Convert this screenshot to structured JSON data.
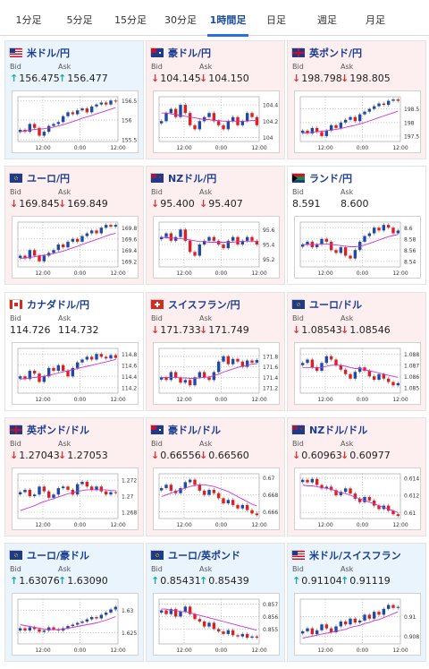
{
  "tabs": [
    "1分足",
    "5分足",
    "15分足",
    "30分足",
    "1時間足",
    "日足",
    "週足",
    "月足"
  ],
  "active_tab": 4,
  "labels": {
    "bid": "Bid",
    "ask": "Ask"
  },
  "colors": {
    "up_candle": "#1f4aa8",
    "down_candle": "#e02020",
    "ma_line": "#cc33cc",
    "up_arrow": "#1aa7a7",
    "down_arrow": "#e03030"
  },
  "panels": [
    {
      "title": "米ドル/円",
      "flag": "us",
      "trend": "up",
      "bid": "156.475",
      "ask": "156.477",
      "chart_data": {
        "type": "candlestick",
        "yticks": [
          "156.5",
          "156",
          "155.5"
        ],
        "xticks": [
          "12:00",
          "0:00",
          "12:00"
        ],
        "ylim": [
          155.45,
          156.6
        ],
        "close": [
          155.75,
          155.7,
          155.9,
          155.8,
          155.6,
          155.7,
          155.85,
          155.9,
          155.95,
          156.1,
          156.2,
          156.15,
          156.25,
          156.3,
          156.2,
          156.35,
          156.4,
          156.45,
          156.4,
          156.5,
          156.48
        ],
        "ma": [
          155.7,
          155.72,
          155.74,
          155.76,
          155.77,
          155.78,
          155.8,
          155.82,
          155.85,
          155.88,
          155.92,
          155.96,
          156.0,
          156.05,
          156.08,
          156.12,
          156.16,
          156.2,
          156.24,
          156.28,
          156.32
        ]
      }
    },
    {
      "title": "豪ドル/円",
      "flag": "au",
      "trend": "down",
      "bid": "104.145",
      "ask": "104.150",
      "chart_data": {
        "type": "candlestick",
        "yticks": [
          "104.4",
          "104.2",
          "104"
        ],
        "xticks": [
          "12:00",
          "0:00",
          "12:00"
        ],
        "ylim": [
          103.95,
          104.5
        ],
        "close": [
          104.2,
          104.3,
          104.35,
          104.25,
          104.4,
          104.3,
          104.15,
          104.1,
          104.2,
          104.25,
          104.3,
          104.2,
          104.15,
          104.1,
          104.2,
          104.25,
          104.15,
          104.2,
          104.3,
          104.25,
          104.15
        ],
        "ma": [
          104.3,
          104.3,
          104.29,
          104.28,
          104.27,
          104.26,
          104.25,
          104.24,
          104.23,
          104.22,
          104.22,
          104.21,
          104.21,
          104.2,
          104.2,
          104.2,
          104.2,
          104.2,
          104.2,
          104.21,
          104.21
        ]
      }
    },
    {
      "title": "英ポンド/円",
      "flag": "gb",
      "trend": "down",
      "bid": "198.798",
      "ask": "198.805",
      "chart_data": {
        "type": "candlestick",
        "yticks": [
          "198.5",
          "198",
          "197.5"
        ],
        "xticks": [
          "12:00",
          "0:00",
          "12:00"
        ],
        "ylim": [
          197.3,
          198.95
        ],
        "close": [
          197.7,
          197.6,
          197.8,
          197.65,
          197.5,
          197.7,
          197.9,
          197.8,
          198.0,
          198.1,
          198.2,
          198.05,
          198.3,
          198.4,
          198.5,
          198.6,
          198.7,
          198.65,
          198.8,
          198.85,
          198.8
        ],
        "ma": [
          197.6,
          197.62,
          197.64,
          197.66,
          197.68,
          197.7,
          197.72,
          197.75,
          197.78,
          197.82,
          197.86,
          197.9,
          197.95,
          198.0,
          198.06,
          198.12,
          198.18,
          198.24,
          198.3,
          198.36,
          198.42
        ]
      }
    },
    {
      "title": "ユーロ/円",
      "flag": "eu",
      "trend": "down",
      "bid": "169.845",
      "ask": "169.849",
      "chart_data": {
        "type": "candlestick",
        "yticks": [
          "169.8",
          "169.6",
          "169.4",
          "169.2"
        ],
        "xticks": [
          "12:00",
          "0:00",
          "12:00"
        ],
        "ylim": [
          169.1,
          169.9
        ],
        "close": [
          169.3,
          169.25,
          169.4,
          169.3,
          169.2,
          169.3,
          169.35,
          169.4,
          169.5,
          169.45,
          169.55,
          169.6,
          169.55,
          169.65,
          169.7,
          169.75,
          169.7,
          169.8,
          169.85,
          169.82,
          169.85
        ],
        "ma": [
          169.25,
          169.26,
          169.27,
          169.28,
          169.3,
          169.31,
          169.32,
          169.34,
          169.36,
          169.38,
          169.41,
          169.44,
          169.47,
          169.5,
          169.53,
          169.56,
          169.59,
          169.62,
          169.65,
          169.68,
          169.7
        ]
      }
    },
    {
      "title": "NZドル/円",
      "flag": "nz",
      "trend": "down",
      "bid": "95.400",
      "ask": "95.407",
      "chart_data": {
        "type": "candlestick",
        "yticks": [
          "95.6",
          "95.4",
          "95.2"
        ],
        "xticks": [
          "12:00",
          "0:00",
          "12:00"
        ],
        "ylim": [
          95.1,
          95.7
        ],
        "close": [
          95.5,
          95.55,
          95.45,
          95.5,
          95.6,
          95.45,
          95.3,
          95.25,
          95.4,
          95.45,
          95.5,
          95.45,
          95.4,
          95.35,
          95.45,
          95.5,
          95.4,
          95.45,
          95.5,
          95.45,
          95.4
        ],
        "ma": [
          95.5,
          95.49,
          95.49,
          95.48,
          95.48,
          95.47,
          95.46,
          95.45,
          95.44,
          95.44,
          95.43,
          95.43,
          95.43,
          95.43,
          95.43,
          95.43,
          95.44,
          95.44,
          95.44,
          95.44,
          95.44
        ]
      }
    },
    {
      "title": "ランド/円",
      "flag": "za",
      "trend": "flat",
      "bid": "8.591",
      "ask": "8.600",
      "chart_data": {
        "type": "candlestick",
        "yticks": [
          "8.6",
          "8.58",
          "8.56",
          "8.54"
        ],
        "xticks": [
          "12:00",
          "0:00",
          "12:00"
        ],
        "ylim": [
          8.53,
          8.61
        ],
        "close": [
          8.57,
          8.575,
          8.565,
          8.57,
          8.58,
          8.575,
          8.56,
          8.555,
          8.565,
          8.55,
          8.545,
          8.56,
          8.575,
          8.585,
          8.59,
          8.6,
          8.595,
          8.605,
          8.6,
          8.59,
          8.595
        ],
        "ma": [
          8.57,
          8.57,
          8.57,
          8.57,
          8.571,
          8.571,
          8.57,
          8.569,
          8.568,
          8.567,
          8.566,
          8.566,
          8.567,
          8.569,
          8.572,
          8.575,
          8.578,
          8.581,
          8.584,
          8.586,
          8.588
        ]
      }
    },
    {
      "title": "カナダドル/円",
      "flag": "ca",
      "trend": "flat",
      "bid": "114.726",
      "ask": "114.732",
      "chart_data": {
        "type": "candlestick",
        "yticks": [
          "114.8",
          "114.6",
          "114.4",
          "114.2"
        ],
        "xticks": [
          "12:00",
          "0:00",
          "12:00"
        ],
        "ylim": [
          114.1,
          114.9
        ],
        "close": [
          114.4,
          114.35,
          114.5,
          114.45,
          114.3,
          114.4,
          114.55,
          114.5,
          114.6,
          114.5,
          114.4,
          114.55,
          114.65,
          114.7,
          114.75,
          114.7,
          114.8,
          114.75,
          114.72,
          114.78,
          114.73
        ],
        "ma": [
          114.35,
          114.36,
          114.37,
          114.38,
          114.39,
          114.4,
          114.42,
          114.44,
          114.46,
          114.48,
          114.5,
          114.52,
          114.54,
          114.56,
          114.58,
          114.6,
          114.62,
          114.64,
          114.66,
          114.68,
          114.7
        ]
      }
    },
    {
      "title": "スイスフラン/円",
      "flag": "ch",
      "trend": "down",
      "bid": "171.733",
      "ask": "171.749",
      "chart_data": {
        "type": "candlestick",
        "yticks": [
          "171.8",
          "171.6",
          "171.4",
          "171.2"
        ],
        "xticks": [
          "12:00",
          "0:00",
          "12:00"
        ],
        "ylim": [
          171.1,
          171.95
        ],
        "close": [
          171.4,
          171.35,
          171.5,
          171.4,
          171.3,
          171.35,
          171.25,
          171.4,
          171.5,
          171.4,
          171.35,
          171.5,
          171.7,
          171.8,
          171.65,
          171.75,
          171.7,
          171.6,
          171.72,
          171.68,
          171.73
        ],
        "ma": [
          171.4,
          171.4,
          171.4,
          171.4,
          171.39,
          171.39,
          171.38,
          171.38,
          171.39,
          171.4,
          171.41,
          171.43,
          171.46,
          171.5,
          171.53,
          171.56,
          171.59,
          171.61,
          171.63,
          171.65,
          171.66
        ]
      }
    },
    {
      "title": "ユーロ/ドル",
      "flag": "eu",
      "trend": "down",
      "bid": "1.08543",
      "ask": "1.08546",
      "chart_data": {
        "type": "candlestick",
        "yticks": [
          "1.088",
          "1.087",
          "1.086",
          "1.085"
        ],
        "xticks": [
          "12:00",
          "0:00",
          "12:00"
        ],
        "ylim": [
          1.0845,
          1.0885
        ],
        "close": [
          1.0872,
          1.0875,
          1.0868,
          1.0865,
          1.0872,
          1.0878,
          1.0875,
          1.087,
          1.0866,
          1.0862,
          1.0858,
          1.0864,
          1.0868,
          1.0865,
          1.086,
          1.0857,
          1.0862,
          1.0858,
          1.0855,
          1.0852,
          1.0854
        ],
        "ma": [
          1.0868,
          1.0868,
          1.0868,
          1.0868,
          1.0868,
          1.0869,
          1.087,
          1.087,
          1.087,
          1.0869,
          1.0868,
          1.0867,
          1.0867,
          1.0866,
          1.0865,
          1.0864,
          1.0863,
          1.0862,
          1.0861,
          1.086,
          1.0859
        ]
      }
    },
    {
      "title": "英ポンド/ドル",
      "flag": "gb",
      "trend": "down",
      "bid": "1.27043",
      "ask": "1.27053",
      "chart_data": {
        "type": "candlestick",
        "yticks": [
          "1.272",
          "1.27",
          "1.268"
        ],
        "xticks": [
          "12:00",
          "0:00",
          "12:00"
        ],
        "ylim": [
          1.2672,
          1.2728
        ],
        "close": [
          1.2705,
          1.2708,
          1.27,
          1.2702,
          1.2712,
          1.2706,
          1.2698,
          1.2702,
          1.271,
          1.2712,
          1.2708,
          1.2702,
          1.2715,
          1.2718,
          1.2712,
          1.2708,
          1.2712,
          1.2706,
          1.2702,
          1.2705,
          1.2704
        ],
        "ma": [
          1.2682,
          1.2684,
          1.2686,
          1.2688,
          1.2691,
          1.2693,
          1.2695,
          1.2697,
          1.2699,
          1.2701,
          1.2703,
          1.2704,
          1.2706,
          1.2707,
          1.2708,
          1.2708,
          1.2708,
          1.2708,
          1.2708,
          1.2707,
          1.2707
        ]
      }
    },
    {
      "title": "豪ドル/ドル",
      "flag": "au",
      "trend": "down",
      "bid": "0.66556",
      "ask": "0.66560",
      "chart_data": {
        "type": "candlestick",
        "yticks": [
          "0.67",
          "0.668",
          "0.666"
        ],
        "xticks": [
          "12:00",
          "0:00",
          "12:00"
        ],
        "ylim": [
          0.6652,
          0.6705
        ],
        "close": [
          0.6688,
          0.6692,
          0.6685,
          0.6682,
          0.6688,
          0.6695,
          0.6698,
          0.6692,
          0.6685,
          0.668,
          0.6686,
          0.6682,
          0.6676,
          0.667,
          0.6674,
          0.6668,
          0.6664,
          0.6668,
          0.6662,
          0.6658,
          0.6656
        ],
        "ma": [
          0.6678,
          0.668,
          0.6682,
          0.6684,
          0.6686,
          0.6688,
          0.669,
          0.6691,
          0.6692,
          0.6692,
          0.6691,
          0.669,
          0.6688,
          0.6686,
          0.6684,
          0.6681,
          0.6678,
          0.6675,
          0.6672,
          0.6669,
          0.6667
        ]
      }
    },
    {
      "title": "NZドル/ドル",
      "flag": "nz",
      "trend": "down",
      "bid": "0.60963",
      "ask": "0.60977",
      "chart_data": {
        "type": "candlestick",
        "yticks": [
          "0.614",
          "0.612",
          "0.61"
        ],
        "xticks": [
          "12:00",
          "0:00",
          "12:00"
        ],
        "ylim": [
          0.6093,
          0.6145
        ],
        "close": [
          0.6138,
          0.6135,
          0.6139,
          0.6132,
          0.6128,
          0.613,
          0.6126,
          0.612,
          0.6124,
          0.6128,
          0.6122,
          0.6116,
          0.6112,
          0.6118,
          0.6114,
          0.6108,
          0.6104,
          0.6108,
          0.6102,
          0.6098,
          0.6096
        ],
        "ma": [
          0.6132,
          0.6131,
          0.6131,
          0.613,
          0.6129,
          0.6128,
          0.6127,
          0.6125,
          0.6123,
          0.6122,
          0.612,
          0.6118,
          0.6116,
          0.6114,
          0.6112,
          0.611,
          0.6108,
          0.6106,
          0.6104,
          0.6102,
          0.61
        ]
      }
    },
    {
      "title": "ユーロ/豪ドル",
      "flag": "eu",
      "trend": "up",
      "bid": "1.63076",
      "ask": "1.63090",
      "chart_data": {
        "type": "candlestick",
        "yticks": [
          "1.63",
          "1.625"
        ],
        "xticks": [
          "12:00",
          "0:00",
          "12:00"
        ],
        "ylim": [
          1.6225,
          1.6325
        ],
        "close": [
          1.626,
          1.6255,
          1.6262,
          1.6258,
          1.6252,
          1.6255,
          1.6262,
          1.6258,
          1.6255,
          1.626,
          1.6265,
          1.6268,
          1.6272,
          1.6275,
          1.628,
          1.6285,
          1.6282,
          1.629,
          1.6295,
          1.6302,
          1.6308
        ],
        "ma": [
          1.6268,
          1.6266,
          1.6264,
          1.6262,
          1.626,
          1.6258,
          1.6257,
          1.6257,
          1.6257,
          1.6258,
          1.626,
          1.6262,
          1.6264,
          1.6266,
          1.6268,
          1.627,
          1.6272,
          1.6275,
          1.6278,
          1.6282,
          1.6286
        ]
      }
    },
    {
      "title": "ユーロ/英ポンド",
      "flag": "eu",
      "trend": "up",
      "bid": "0.85431",
      "ask": "0.85439",
      "chart_data": {
        "type": "candlestick",
        "yticks": [
          "0.857",
          "0.856",
          "0.855"
        ],
        "xticks": [
          "12:00",
          "0:00",
          "12:00"
        ],
        "ylim": [
          0.8538,
          0.8574
        ],
        "close": [
          0.8565,
          0.8562,
          0.8566,
          0.856,
          0.8564,
          0.8568,
          0.8562,
          0.8558,
          0.8556,
          0.8552,
          0.8555,
          0.855,
          0.8548,
          0.8546,
          0.8549,
          0.8545,
          0.8544,
          0.8546,
          0.8543,
          0.8544,
          0.8543
        ],
        "ma": [
          0.8566,
          0.8566,
          0.8565,
          0.8565,
          0.8564,
          0.8564,
          0.8563,
          0.8562,
          0.8561,
          0.856,
          0.8559,
          0.8558,
          0.8557,
          0.8556,
          0.8555,
          0.8554,
          0.8553,
          0.8552,
          0.8551,
          0.855,
          0.8549
        ]
      }
    },
    {
      "title": "米ドル/スイスフラン",
      "flag": "us",
      "trend": "up",
      "bid": "0.91104",
      "ask": "0.91119",
      "chart_data": {
        "type": "candlestick",
        "yticks": [
          "0.91",
          "0.908"
        ],
        "xticks": [
          "12:00",
          "0:00",
          "12:00"
        ],
        "ylim": [
          0.9072,
          0.9118
        ],
        "close": [
          0.9085,
          0.9088,
          0.9082,
          0.9086,
          0.9092,
          0.9088,
          0.9084,
          0.909,
          0.9095,
          0.9092,
          0.9098,
          0.9094,
          0.9096,
          0.9102,
          0.9098,
          0.9105,
          0.9102,
          0.9108,
          0.9112,
          0.9109,
          0.911
        ],
        "ma": [
          0.9078,
          0.9079,
          0.908,
          0.9081,
          0.9082,
          0.9083,
          0.9084,
          0.9085,
          0.9086,
          0.9087,
          0.9089,
          0.909,
          0.9091,
          0.9093,
          0.9094,
          0.9096,
          0.9097,
          0.9099,
          0.9101,
          0.9103,
          0.9105
        ]
      }
    }
  ]
}
